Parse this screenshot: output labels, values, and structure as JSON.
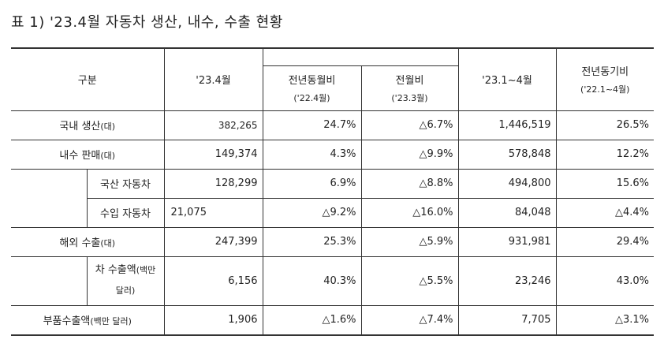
{
  "title": "표 1) '23.4월 자동차 생산, 내수, 수출 현황",
  "header": {
    "category": "구분",
    "month": "'23.4월",
    "yoy": "전년동월비",
    "yoy_sub": "('22.4월)",
    "mom": "전월비",
    "mom_sub": "('23.3월)",
    "ytd": "'23.1~4월",
    "ytd_yoy": "전년동기비",
    "ytd_yoy_sub": "('22.1~4월)"
  },
  "rows": {
    "production": {
      "label": "국내 생산",
      "unit": "(대)",
      "month": "382,265",
      "yoy": "24.7%",
      "mom": "△6.7%",
      "ytd": "1,446,519",
      "ytd_yoy": "26.5%"
    },
    "domestic": {
      "label": "내수 판매",
      "unit": "(대)",
      "month": "149,374",
      "yoy": "4.3%",
      "mom": "△9.9%",
      "ytd": "578,848",
      "ytd_yoy": "12.2%"
    },
    "domestic_local": {
      "label": "국산 자동차",
      "month": "128,299",
      "yoy": "6.9%",
      "mom": "△8.8%",
      "ytd": "494,800",
      "ytd_yoy": "15.6%"
    },
    "domestic_import": {
      "label": "수입 자동차",
      "month": "21,075",
      "yoy": "△9.2%",
      "mom": "△16.0%",
      "ytd": "84,048",
      "ytd_yoy": "△4.4%"
    },
    "export": {
      "label": "해외 수출",
      "unit": "(대)",
      "month": "247,399",
      "yoy": "25.3%",
      "mom": "△5.9%",
      "ytd": "931,981",
      "ytd_yoy": "29.4%"
    },
    "export_value": {
      "label_a": "차 수출액",
      "unit_a": "(백만",
      "label_b": "달러)",
      "month": "6,156",
      "yoy": "40.3%",
      "mom": "△5.5%",
      "ytd": "23,246",
      "ytd_yoy": "43.0%"
    },
    "parts": {
      "label": "부품수출액",
      "unit": "(백만 달러)",
      "month": "1,906",
      "yoy": "△1.6%",
      "mom": "△7.4%",
      "ytd": "7,705",
      "ytd_yoy": "△3.1%"
    }
  }
}
